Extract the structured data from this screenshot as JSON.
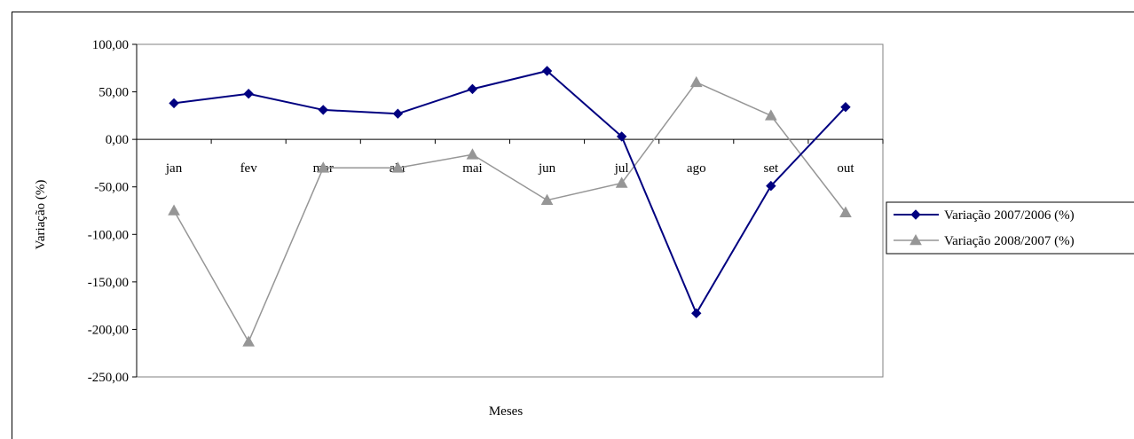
{
  "chart_data": {
    "type": "line",
    "title": "",
    "xlabel": "Meses",
    "ylabel": "Variação (%)",
    "categories": [
      "jan",
      "fev",
      "mar",
      "abr",
      "mai",
      "jun",
      "jul",
      "ago",
      "set",
      "out"
    ],
    "ylim": [
      -250,
      100
    ],
    "ytick_values": [
      100,
      50,
      0,
      -50,
      -100,
      -150,
      -200,
      -250
    ],
    "ytick_labels": [
      "100,00",
      "50,00",
      "0,00",
      "-50,00",
      "-100,00",
      "-150,00",
      "-200,00",
      "-250,00"
    ],
    "grid": false,
    "legend_position": "right",
    "series": [
      {
        "name": "Variação 2007/2006 (%)",
        "color": "#000080",
        "marker": "diamond",
        "values": [
          38,
          48,
          31,
          27,
          53,
          72,
          3,
          -183,
          -49,
          34
        ]
      },
      {
        "name": "Variação 2008/2007 (%)",
        "color": "#969696",
        "marker": "triangle",
        "values": [
          -75,
          -213,
          -30,
          -30,
          -16,
          -64,
          -46,
          60,
          25,
          -77
        ]
      }
    ]
  }
}
